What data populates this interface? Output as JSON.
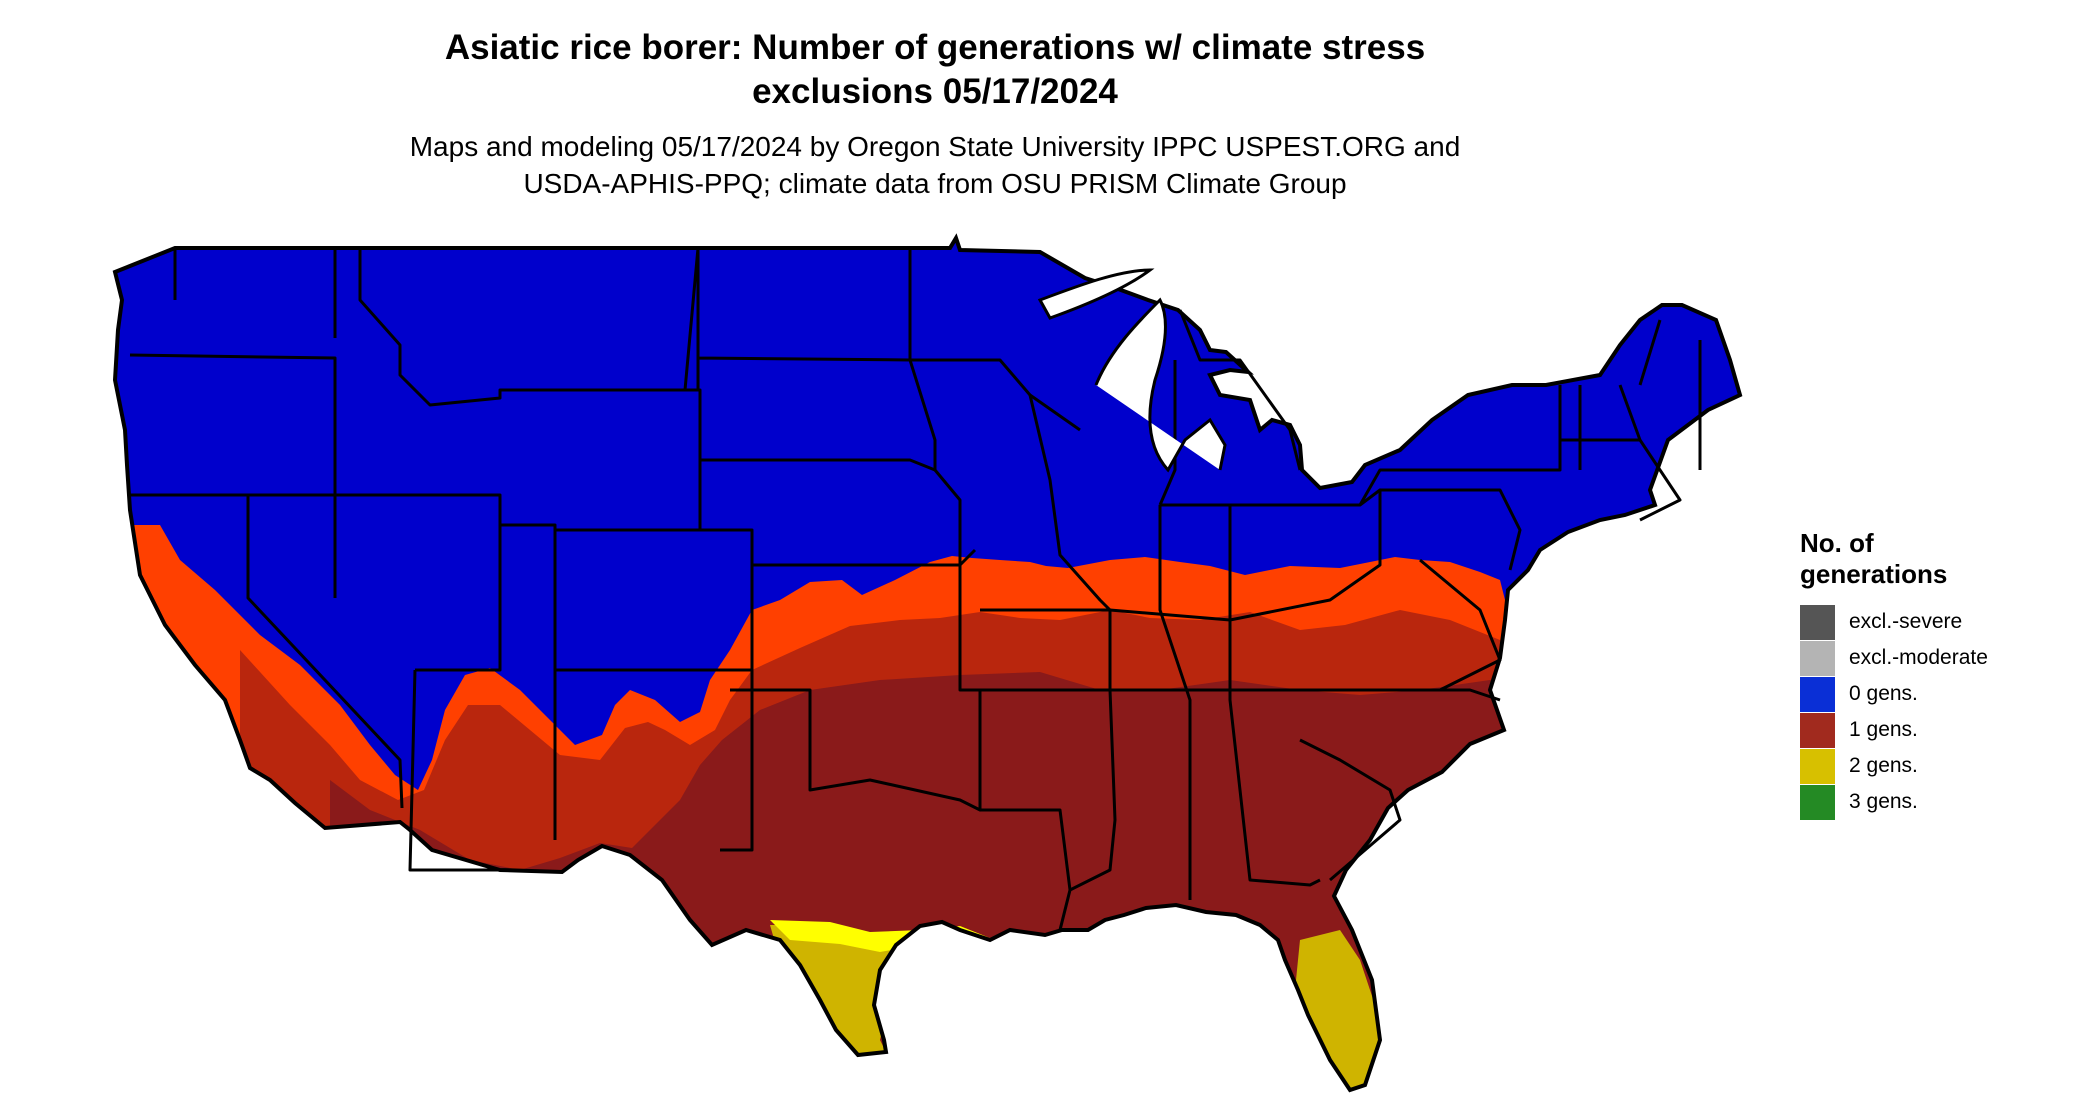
{
  "title": {
    "line1": "Asiatic rice borer: Number of generations w/ climate stress",
    "line2": "exclusions 05/17/2024"
  },
  "subtitle": {
    "line1": "Maps and modeling 05/17/2024 by Oregon State University IPPC USPEST.ORG and",
    "line2": "USDA-APHIS-PPQ; climate data from OSU PRISM Climate Group"
  },
  "legend": {
    "title_line1": "No. of",
    "title_line2": "generations",
    "items": [
      {
        "label": "excl.-severe",
        "color": "#555555"
      },
      {
        "label": "excl.-moderate",
        "color": "#b4b4b4"
      },
      {
        "label": "0 gens.",
        "color": "#0a2fd6"
      },
      {
        "label": "1 gens.",
        "color": "#a12a1e"
      },
      {
        "label": "2 gens.",
        "color": "#d7c000"
      },
      {
        "label": "3 gens.",
        "color": "#248a24"
      }
    ]
  },
  "colors": {
    "zero_gens_fill": "#0000cc",
    "one_gen_fill": "#8a1a1a",
    "one_gen_north_fringe": "#b9260d",
    "one_gen_orange_fringe": "#ff4000",
    "two_gens_fill": "#cfb400",
    "two_gens_light": "#ffff00",
    "border": "#000000"
  },
  "map": {
    "region": "Contiguous United States",
    "geo_bounds": {
      "lon_min": -124.8,
      "lon_max": -66.9,
      "lat_min": 24.5,
      "lat_max": 49.4
    }
  }
}
